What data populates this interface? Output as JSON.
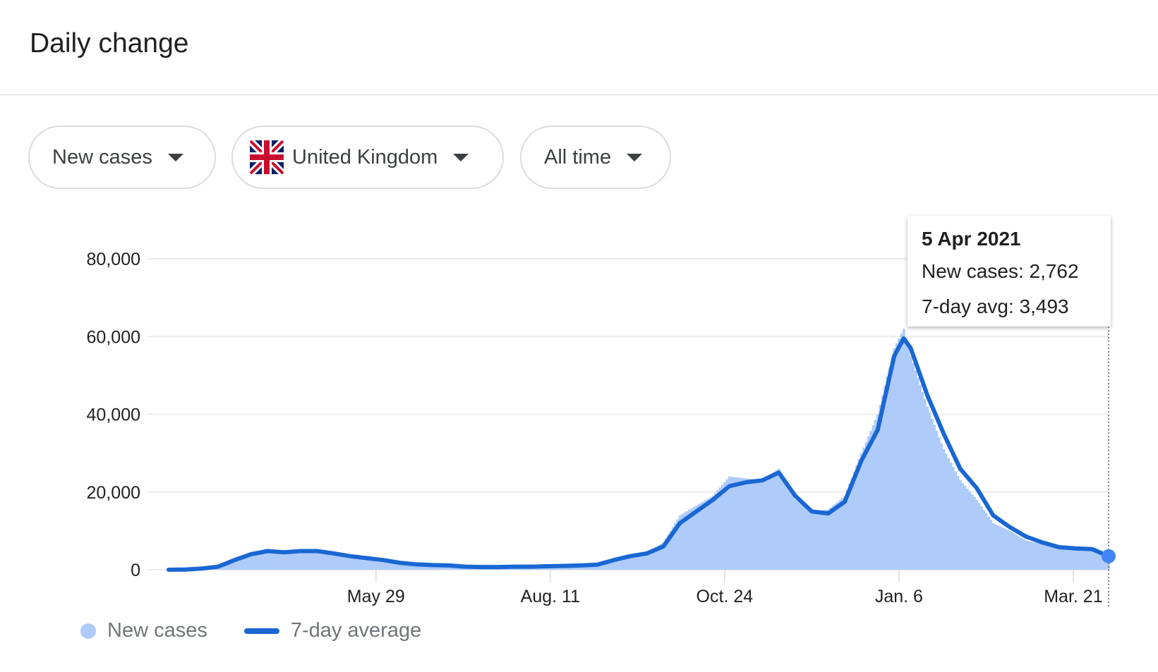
{
  "header": {
    "title": "Daily change"
  },
  "filters": [
    {
      "label": "New cases",
      "icon": "caret-down-icon"
    },
    {
      "label": "United Kingdom",
      "flag": "uk-flag-icon",
      "icon": "caret-down-icon"
    },
    {
      "label": "All time",
      "icon": "caret-down-icon"
    }
  ],
  "tooltip": {
    "date": "5 Apr 2021",
    "new_cases": "New cases: 2,762",
    "avg": "7-day avg: 3,493"
  },
  "legend": {
    "bars": "New cases",
    "line": "7-day average"
  },
  "colors": {
    "bars": "#aecbfa",
    "line": "#1967d2",
    "grid": "#ebebeb"
  },
  "chart_data": {
    "type": "bar+line",
    "title": "",
    "xlabel": "",
    "ylabel": "",
    "ylim": [
      0,
      80000
    ],
    "xlim": [
      "2020-03-02",
      "2021-04-05"
    ],
    "grid": true,
    "legend_placement": "bottom-left",
    "y_ticks": [
      "0",
      "20,000",
      "40,000",
      "60,000",
      "80,000"
    ],
    "y_tick_values": [
      0,
      20000,
      40000,
      60000,
      80000
    ],
    "x_ticks": [
      {
        "label": "May 29",
        "date": "2020-05-29"
      },
      {
        "label": "Aug. 11",
        "date": "2020-08-11"
      },
      {
        "label": "Oct. 24",
        "date": "2020-10-24"
      },
      {
        "label": "Jan. 6",
        "date": "2021-01-06"
      },
      {
        "label": "Mar. 21",
        "date": "2021-03-21"
      }
    ],
    "dates": [
      "2020-03-02",
      "2020-03-09",
      "2020-03-16",
      "2020-03-23",
      "2020-03-30",
      "2020-04-06",
      "2020-04-13",
      "2020-04-20",
      "2020-04-27",
      "2020-05-04",
      "2020-05-11",
      "2020-05-18",
      "2020-05-25",
      "2020-06-01",
      "2020-06-08",
      "2020-06-15",
      "2020-06-22",
      "2020-06-29",
      "2020-07-06",
      "2020-07-13",
      "2020-07-20",
      "2020-07-27",
      "2020-08-03",
      "2020-08-10",
      "2020-08-17",
      "2020-08-24",
      "2020-08-31",
      "2020-09-07",
      "2020-09-14",
      "2020-09-21",
      "2020-09-28",
      "2020-10-05",
      "2020-10-12",
      "2020-10-19",
      "2020-10-26",
      "2020-11-02",
      "2020-11-09",
      "2020-11-16",
      "2020-11-23",
      "2020-11-30",
      "2020-12-07",
      "2020-12-14",
      "2020-12-21",
      "2020-12-28",
      "2021-01-04",
      "2021-01-08",
      "2021-01-11",
      "2021-01-18",
      "2021-01-25",
      "2021-02-01",
      "2021-02-08",
      "2021-02-15",
      "2021-02-22",
      "2021-03-01",
      "2021-03-08",
      "2021-03-15",
      "2021-03-22",
      "2021-03-29",
      "2021-04-05"
    ],
    "series": [
      {
        "name": "New cases",
        "kind": "bar",
        "values": [
          0,
          100,
          400,
          1200,
          3000,
          4300,
          5000,
          4600,
          4900,
          4900,
          4100,
          3400,
          2900,
          2400,
          1700,
          1300,
          1100,
          1000,
          750,
          650,
          700,
          800,
          850,
          950,
          1050,
          1200,
          1500,
          2900,
          3800,
          4500,
          7000,
          14000,
          16500,
          19000,
          24000,
          23500,
          23000,
          26000,
          18000,
          15000,
          15500,
          19000,
          30000,
          40000,
          57000,
          62000,
          55000,
          42000,
          31000,
          23000,
          18000,
          12000,
          10000,
          7500,
          6500,
          5500,
          5300,
          4800,
          2762
        ]
      },
      {
        "name": "7-day average",
        "kind": "line",
        "values": [
          0,
          50,
          300,
          800,
          2500,
          4000,
          4800,
          4500,
          4800,
          4800,
          4200,
          3500,
          3000,
          2500,
          1800,
          1400,
          1200,
          1100,
          800,
          700,
          700,
          800,
          800,
          900,
          1000,
          1100,
          1300,
          2500,
          3500,
          4200,
          6000,
          12000,
          15000,
          18000,
          21500,
          22500,
          23000,
          25000,
          19000,
          15000,
          14500,
          17500,
          28000,
          36000,
          55000,
          59500,
          57000,
          45000,
          35000,
          26000,
          21000,
          14000,
          11000,
          8500,
          7000,
          5800,
          5500,
          5300,
          3493
        ]
      }
    ]
  }
}
